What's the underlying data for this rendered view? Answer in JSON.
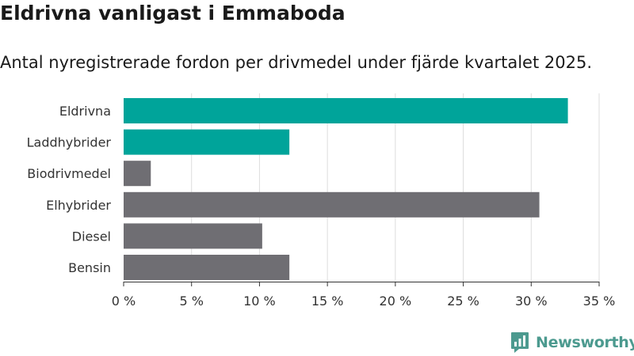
{
  "header": {
    "title": "Eldrivna vanligast i Emmaboda",
    "subtitle": "Antal nyregistrerade fordon per drivmedel under fjärde kvartalet 2025."
  },
  "brand": {
    "name": "Newsworthy"
  },
  "colors": {
    "highlight": "#00a49a",
    "default": "#6f6e73",
    "grid": "#dddddd",
    "axis": "#333333",
    "text": "#333333",
    "brand": "#4c9a8f"
  },
  "chart_data": {
    "type": "bar",
    "orientation": "horizontal",
    "title": "Eldrivna vanligast i Emmaboda",
    "subtitle": "Antal nyregistrerade fordon per drivmedel under fjärde kvartalet 2025.",
    "xlabel": "",
    "ylabel": "",
    "categories": [
      "Eldrivna",
      "Laddhybrider",
      "Biodrivmedel",
      "Elhybrider",
      "Diesel",
      "Bensin"
    ],
    "values": [
      32.7,
      12.2,
      2.0,
      30.6,
      10.2,
      12.2
    ],
    "highlight": [
      true,
      true,
      false,
      false,
      false,
      false
    ],
    "xlim": [
      0,
      35
    ],
    "ticks": [
      0,
      5,
      10,
      15,
      20,
      25,
      30,
      35
    ],
    "tick_labels": [
      "0 %",
      "5 %",
      "10 %",
      "15 %",
      "20 %",
      "25 %",
      "30 %",
      "35 %"
    ],
    "grid": true,
    "unit": "%"
  }
}
